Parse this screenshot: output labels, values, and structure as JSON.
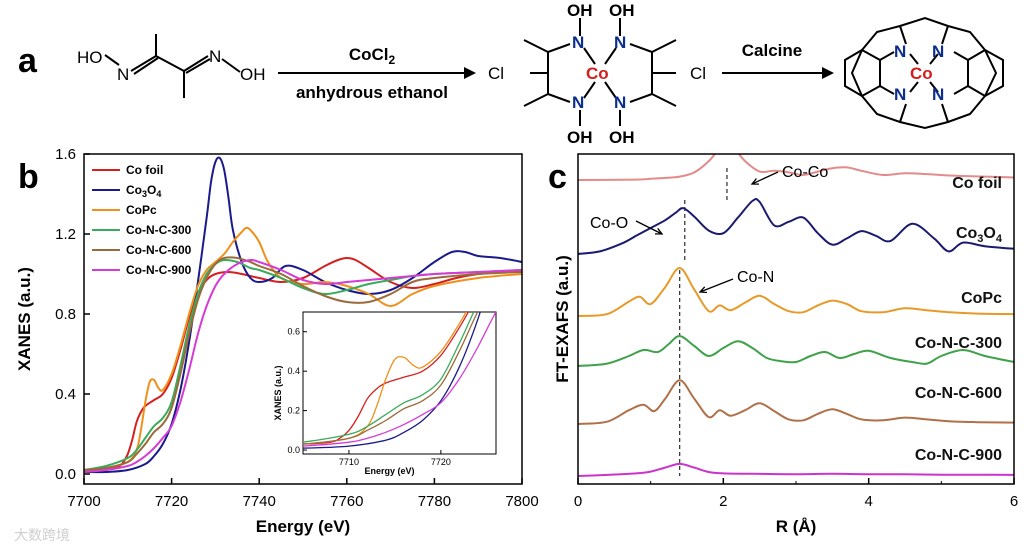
{
  "panels": {
    "a": "a",
    "b": "b",
    "c": "c"
  },
  "scheme": {
    "reagent1_top": "CoCl",
    "reagent1_sub": "2",
    "reagent1_bottom": "anhydrous ethanol",
    "reagent2_top": "Calcine",
    "oxime_HO": "HO",
    "oxime_N1": "N",
    "oxime_N2": "N",
    "oxime_OH": "OH",
    "complex_Cl_left": "Cl",
    "complex_Cl_right": "Cl",
    "complex_Co": "Co",
    "complex_N": "N",
    "complex_OH": "OH",
    "product_Co": "Co",
    "product_N": "N"
  },
  "watermark": "大数跨境",
  "chart_data": [
    {
      "type": "line",
      "id": "xanes",
      "xlabel": "Energy (eV)",
      "ylabel": "XANES (a.u.)",
      "xlim": [
        7700,
        7800
      ],
      "ylim": [
        -0.05,
        1.6
      ],
      "xticks": [
        7700,
        7720,
        7740,
        7760,
        7780,
        7800
      ],
      "yticks": [
        0.0,
        0.4,
        0.8,
        1.2,
        1.6
      ],
      "xtick_labels": [
        "7700",
        "7720",
        "7740",
        "7760",
        "7780",
        "7800"
      ],
      "ytick_labels": [
        "0.0",
        "0.4",
        "0.8",
        "1.2",
        "1.6"
      ],
      "legend_position": "top-left",
      "series": [
        {
          "name": "Co foil",
          "color": "#d62020",
          "x": [
            7700,
            7705,
            7708,
            7709,
            7710,
            7711,
            7712,
            7713,
            7714,
            7716,
            7718,
            7720,
            7722,
            7724,
            7726,
            7728,
            7730,
            7733,
            7736,
            7740,
            7745,
            7750,
            7755,
            7758,
            7760,
            7762,
            7765,
            7770,
            7775,
            7780,
            7785,
            7790,
            7795,
            7800
          ],
          "y": [
            0.02,
            0.03,
            0.04,
            0.06,
            0.1,
            0.17,
            0.26,
            0.31,
            0.34,
            0.37,
            0.4,
            0.48,
            0.62,
            0.78,
            0.9,
            0.97,
            1.0,
            1.01,
            1.0,
            0.98,
            0.96,
            0.98,
            1.04,
            1.07,
            1.08,
            1.07,
            1.03,
            0.96,
            0.93,
            0.95,
            0.98,
            1.0,
            1.01,
            1.01
          ]
        },
        {
          "name": "Co3O4",
          "name_display": "Co",
          "name_sub": "3",
          "name_mid": "O",
          "name_sub2": "4",
          "color": "#1a1a8c",
          "x": [
            7700,
            7705,
            7710,
            7714,
            7716,
            7718,
            7720,
            7722,
            7724,
            7726,
            7728,
            7729,
            7730,
            7731,
            7732,
            7733,
            7734,
            7736,
            7738,
            7740,
            7743,
            7746,
            7750,
            7755,
            7760,
            7765,
            7770,
            7775,
            7780,
            7784,
            7787,
            7790,
            7795,
            7800
          ],
          "y": [
            0.01,
            0.01,
            0.02,
            0.05,
            0.09,
            0.15,
            0.25,
            0.42,
            0.66,
            0.96,
            1.28,
            1.46,
            1.56,
            1.58,
            1.52,
            1.38,
            1.22,
            1.06,
            0.98,
            0.96,
            0.98,
            1.04,
            1.02,
            0.96,
            0.92,
            0.9,
            0.92,
            0.98,
            1.06,
            1.11,
            1.11,
            1.09,
            1.08,
            1.06
          ]
        },
        {
          "name": "CoPc",
          "color": "#f0901a",
          "x": [
            7700,
            7705,
            7710,
            7712,
            7713,
            7714,
            7715,
            7716,
            7717,
            7718,
            7720,
            7722,
            7724,
            7726,
            7728,
            7730,
            7732,
            7734,
            7736,
            7737,
            7738,
            7740,
            7742,
            7745,
            7750,
            7755,
            7760,
            7765,
            7770,
            7775,
            7780,
            7790,
            7800
          ],
          "y": [
            0.02,
            0.03,
            0.06,
            0.12,
            0.22,
            0.36,
            0.46,
            0.47,
            0.43,
            0.42,
            0.5,
            0.64,
            0.8,
            0.94,
            1.02,
            1.06,
            1.1,
            1.16,
            1.21,
            1.23,
            1.22,
            1.16,
            1.06,
            0.98,
            0.95,
            0.96,
            0.94,
            0.9,
            0.84,
            0.9,
            0.94,
            0.98,
            1.0
          ]
        },
        {
          "name": "Co-N-C-300",
          "color": "#3aab5c",
          "x": [
            7700,
            7705,
            7710,
            7712,
            7714,
            7716,
            7718,
            7720,
            7722,
            7724,
            7726,
            7728,
            7730,
            7732,
            7735,
            7738,
            7740,
            7745,
            7750,
            7755,
            7760,
            7765,
            7770,
            7775,
            7780,
            7790,
            7800
          ],
          "y": [
            0.02,
            0.04,
            0.08,
            0.12,
            0.18,
            0.24,
            0.28,
            0.36,
            0.54,
            0.74,
            0.9,
            1.0,
            1.05,
            1.07,
            1.06,
            1.03,
            1.02,
            0.98,
            0.93,
            0.9,
            0.92,
            0.95,
            0.97,
            0.99,
            1.0,
            1.01,
            1.02
          ]
        },
        {
          "name": "Co-N-C-600",
          "color": "#9b6a3a",
          "x": [
            7700,
            7705,
            7710,
            7712,
            7714,
            7716,
            7718,
            7720,
            7722,
            7724,
            7726,
            7728,
            7730,
            7732,
            7735,
            7738,
            7740,
            7745,
            7750,
            7755,
            7760,
            7765,
            7770,
            7775,
            7780,
            7790,
            7800
          ],
          "y": [
            0.02,
            0.03,
            0.06,
            0.1,
            0.15,
            0.21,
            0.25,
            0.33,
            0.5,
            0.7,
            0.87,
            0.98,
            1.05,
            1.08,
            1.08,
            1.06,
            1.04,
            1.0,
            0.94,
            0.89,
            0.86,
            0.86,
            0.9,
            0.96,
            0.98,
            1.0,
            1.01
          ]
        },
        {
          "name": "Co-N-C-900",
          "color": "#d63bd6",
          "x": [
            7700,
            7705,
            7710,
            7712,
            7714,
            7716,
            7718,
            7720,
            7722,
            7724,
            7726,
            7728,
            7730,
            7732,
            7735,
            7738,
            7740,
            7745,
            7750,
            7755,
            7760,
            7765,
            7770,
            7775,
            7780,
            7790,
            7800
          ],
          "y": [
            0.01,
            0.02,
            0.04,
            0.06,
            0.09,
            0.13,
            0.18,
            0.24,
            0.36,
            0.52,
            0.7,
            0.84,
            0.94,
            1.0,
            1.05,
            1.07,
            1.06,
            1.02,
            0.97,
            0.95,
            0.96,
            0.97,
            0.98,
            0.99,
            1.0,
            1.01,
            1.02
          ]
        }
      ],
      "inset": {
        "xlabel": "Energy (eV)",
        "ylabel": "XANES (a.u.)",
        "xlim": [
          7705,
          7726
        ],
        "ylim": [
          -0.02,
          0.7
        ],
        "xticks": [
          7710,
          7720
        ],
        "yticks": [
          0.0,
          0.2,
          0.4,
          0.6
        ],
        "xtick_labels": [
          "7710",
          "7720"
        ],
        "ytick_labels": [
          "0.0",
          "0.2",
          "0.4",
          "0.6"
        ]
      }
    },
    {
      "type": "line",
      "id": "ftexafs",
      "xlabel": "R (Å)",
      "ylabel": "FT-EXAFS (a.u.)",
      "xlim": [
        0,
        6
      ],
      "xticks": [
        0,
        2,
        4,
        6
      ],
      "xtick_labels": [
        "0",
        "2",
        "4",
        "6"
      ],
      "annotations": [
        {
          "text": "Co-Co",
          "x": 2.05,
          "series": "Co foil"
        },
        {
          "text": "Co-O",
          "x": 1.45,
          "series": "Co3O4"
        },
        {
          "text": "Co-N",
          "x": 1.4,
          "series": "CoPc"
        }
      ],
      "series": [
        {
          "name": "Co foil",
          "label": "Co foil",
          "color": "#e58a8a",
          "x": [
            0,
            0.8,
            1.0,
            1.2,
            1.4,
            1.6,
            1.8,
            1.95,
            2.05,
            2.15,
            2.3,
            2.5,
            2.7,
            2.9,
            3.1,
            3.3,
            3.5,
            3.7,
            3.9,
            4.2,
            4.5,
            4.8,
            5.2,
            5.6,
            6.0
          ],
          "y": [
            0.0,
            0.01,
            0.03,
            0.05,
            0.08,
            0.18,
            0.45,
            0.75,
            0.82,
            0.75,
            0.45,
            0.2,
            0.22,
            0.18,
            0.12,
            0.2,
            0.28,
            0.3,
            0.22,
            0.12,
            0.16,
            0.14,
            0.1,
            0.08,
            0.06
          ]
        },
        {
          "name": "Co3O4",
          "label": "Co",
          "label_sub": "3",
          "label_mid": "O",
          "label_sub2": "4",
          "color": "#1a1a6e",
          "x": [
            0,
            0.3,
            0.6,
            0.8,
            1.0,
            1.2,
            1.35,
            1.45,
            1.6,
            1.8,
            2.0,
            2.2,
            2.4,
            2.5,
            2.7,
            2.9,
            3.1,
            3.3,
            3.5,
            3.7,
            3.9,
            4.1,
            4.3,
            4.6,
            4.9,
            5.1,
            5.3,
            5.6,
            6.0
          ],
          "y": [
            0.0,
            0.05,
            0.2,
            0.35,
            0.5,
            0.65,
            0.8,
            0.88,
            0.72,
            0.45,
            0.4,
            0.7,
            1.02,
            1.0,
            0.55,
            0.62,
            0.7,
            0.4,
            0.18,
            0.3,
            0.44,
            0.35,
            0.25,
            0.58,
            0.3,
            0.05,
            0.22,
            0.15,
            0.1
          ]
        },
        {
          "name": "CoPc",
          "label": "CoPc",
          "color": "#e89a28",
          "x": [
            0,
            0.4,
            0.7,
            0.85,
            1.0,
            1.2,
            1.4,
            1.6,
            1.8,
            1.95,
            2.1,
            2.3,
            2.5,
            2.7,
            2.9,
            3.1,
            3.3,
            3.5,
            3.7,
            3.9,
            4.2,
            4.5,
            4.8,
            5.1,
            5.5,
            6.0
          ],
          "y": [
            0.0,
            0.04,
            0.3,
            0.4,
            0.25,
            0.6,
            1.0,
            0.55,
            0.1,
            0.22,
            0.12,
            0.28,
            0.42,
            0.25,
            0.1,
            0.08,
            0.22,
            0.32,
            0.25,
            0.1,
            0.08,
            0.16,
            0.12,
            0.08,
            0.05,
            0.04
          ]
        },
        {
          "name": "Co-N-C-300",
          "label": "Co-N-C-300",
          "color": "#3fa14a",
          "x": [
            0,
            0.4,
            0.7,
            0.9,
            1.1,
            1.25,
            1.4,
            1.6,
            1.8,
            2.0,
            2.2,
            2.4,
            2.6,
            2.8,
            3.0,
            3.2,
            3.4,
            3.6,
            3.8,
            4.0,
            4.3,
            4.6,
            4.8,
            5.0,
            5.3,
            5.6,
            6.0
          ],
          "y": [
            0.0,
            0.06,
            0.25,
            0.4,
            0.35,
            0.55,
            0.75,
            0.5,
            0.25,
            0.45,
            0.62,
            0.45,
            0.2,
            0.12,
            0.1,
            0.25,
            0.35,
            0.2,
            0.3,
            0.38,
            0.2,
            0.1,
            0.06,
            0.25,
            0.4,
            0.25,
            0.1
          ]
        },
        {
          "name": "Co-N-C-600",
          "label": "Co-N-C-600",
          "color": "#b07048",
          "x": [
            0,
            0.4,
            0.7,
            0.9,
            1.05,
            1.2,
            1.4,
            1.6,
            1.8,
            1.95,
            2.1,
            2.3,
            2.5,
            2.7,
            2.9,
            3.1,
            3.3,
            3.5,
            3.7,
            3.9,
            4.2,
            4.5,
            4.8,
            5.1,
            5.5,
            6.0
          ],
          "y": [
            0.0,
            0.05,
            0.3,
            0.42,
            0.28,
            0.55,
            0.95,
            0.55,
            0.15,
            0.3,
            0.18,
            0.3,
            0.45,
            0.28,
            0.1,
            0.08,
            0.22,
            0.32,
            0.22,
            0.1,
            0.08,
            0.14,
            0.1,
            0.06,
            0.04,
            0.03
          ]
        },
        {
          "name": "Co-N-C-900",
          "label": "Co-N-C-900",
          "color": "#cc33cc",
          "x": [
            0,
            0.4,
            0.8,
            1.0,
            1.2,
            1.4,
            1.6,
            1.8,
            2.0,
            2.4,
            3.0,
            3.5,
            4.0,
            4.5,
            5.0,
            5.5,
            6.0
          ],
          "y": [
            0.0,
            0.05,
            0.12,
            0.2,
            0.38,
            0.55,
            0.38,
            0.18,
            0.12,
            0.1,
            0.08,
            0.1,
            0.08,
            0.08,
            0.06,
            0.06,
            0.05
          ]
        }
      ]
    }
  ]
}
